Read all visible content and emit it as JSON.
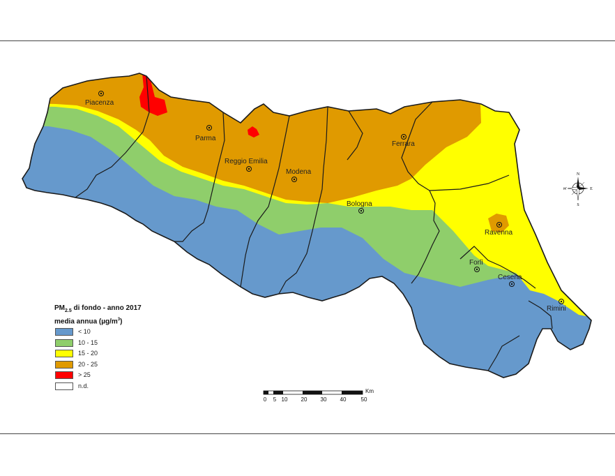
{
  "legend": {
    "title_line1_pre": "PM",
    "title_line1_sub": "2.5",
    "title_line1_post": " di fondo - anno 2017",
    "title_line2_pre": "media annua (µg/m",
    "title_line2_sup": "3",
    "title_line2_post": ")",
    "classes": [
      {
        "label": "< 10",
        "color": "#6699cc"
      },
      {
        "label": "10 - 15",
        "color": "#8fce6b"
      },
      {
        "label": "15 - 20",
        "color": "#ffff00"
      },
      {
        "label": "20 - 25",
        "color": "#e09a00"
      },
      {
        "label": "> 25",
        "color": "#ff0000"
      },
      {
        "label": "n.d.",
        "color": "#ffffff"
      }
    ]
  },
  "cities": {
    "piacenza": "Piacenza",
    "parma": "Parma",
    "reggio_emilia": "Reggio Emilia",
    "modena": "Modena",
    "ferrara": "Ferrara",
    "bologna": "Bologna",
    "ravenna": "Ravenna",
    "forli": "Forlì",
    "cesena": "Cesena",
    "rimini": "Rimini"
  },
  "scale": {
    "unit": "Km",
    "ticks": [
      "0",
      "5",
      "10",
      "20",
      "30",
      "40",
      "50"
    ]
  },
  "compass": {
    "n": "N",
    "s": "S",
    "e": "E",
    "w": "W"
  },
  "colors": {
    "boundary": "#1a1a1a",
    "background": "#ffffff"
  }
}
